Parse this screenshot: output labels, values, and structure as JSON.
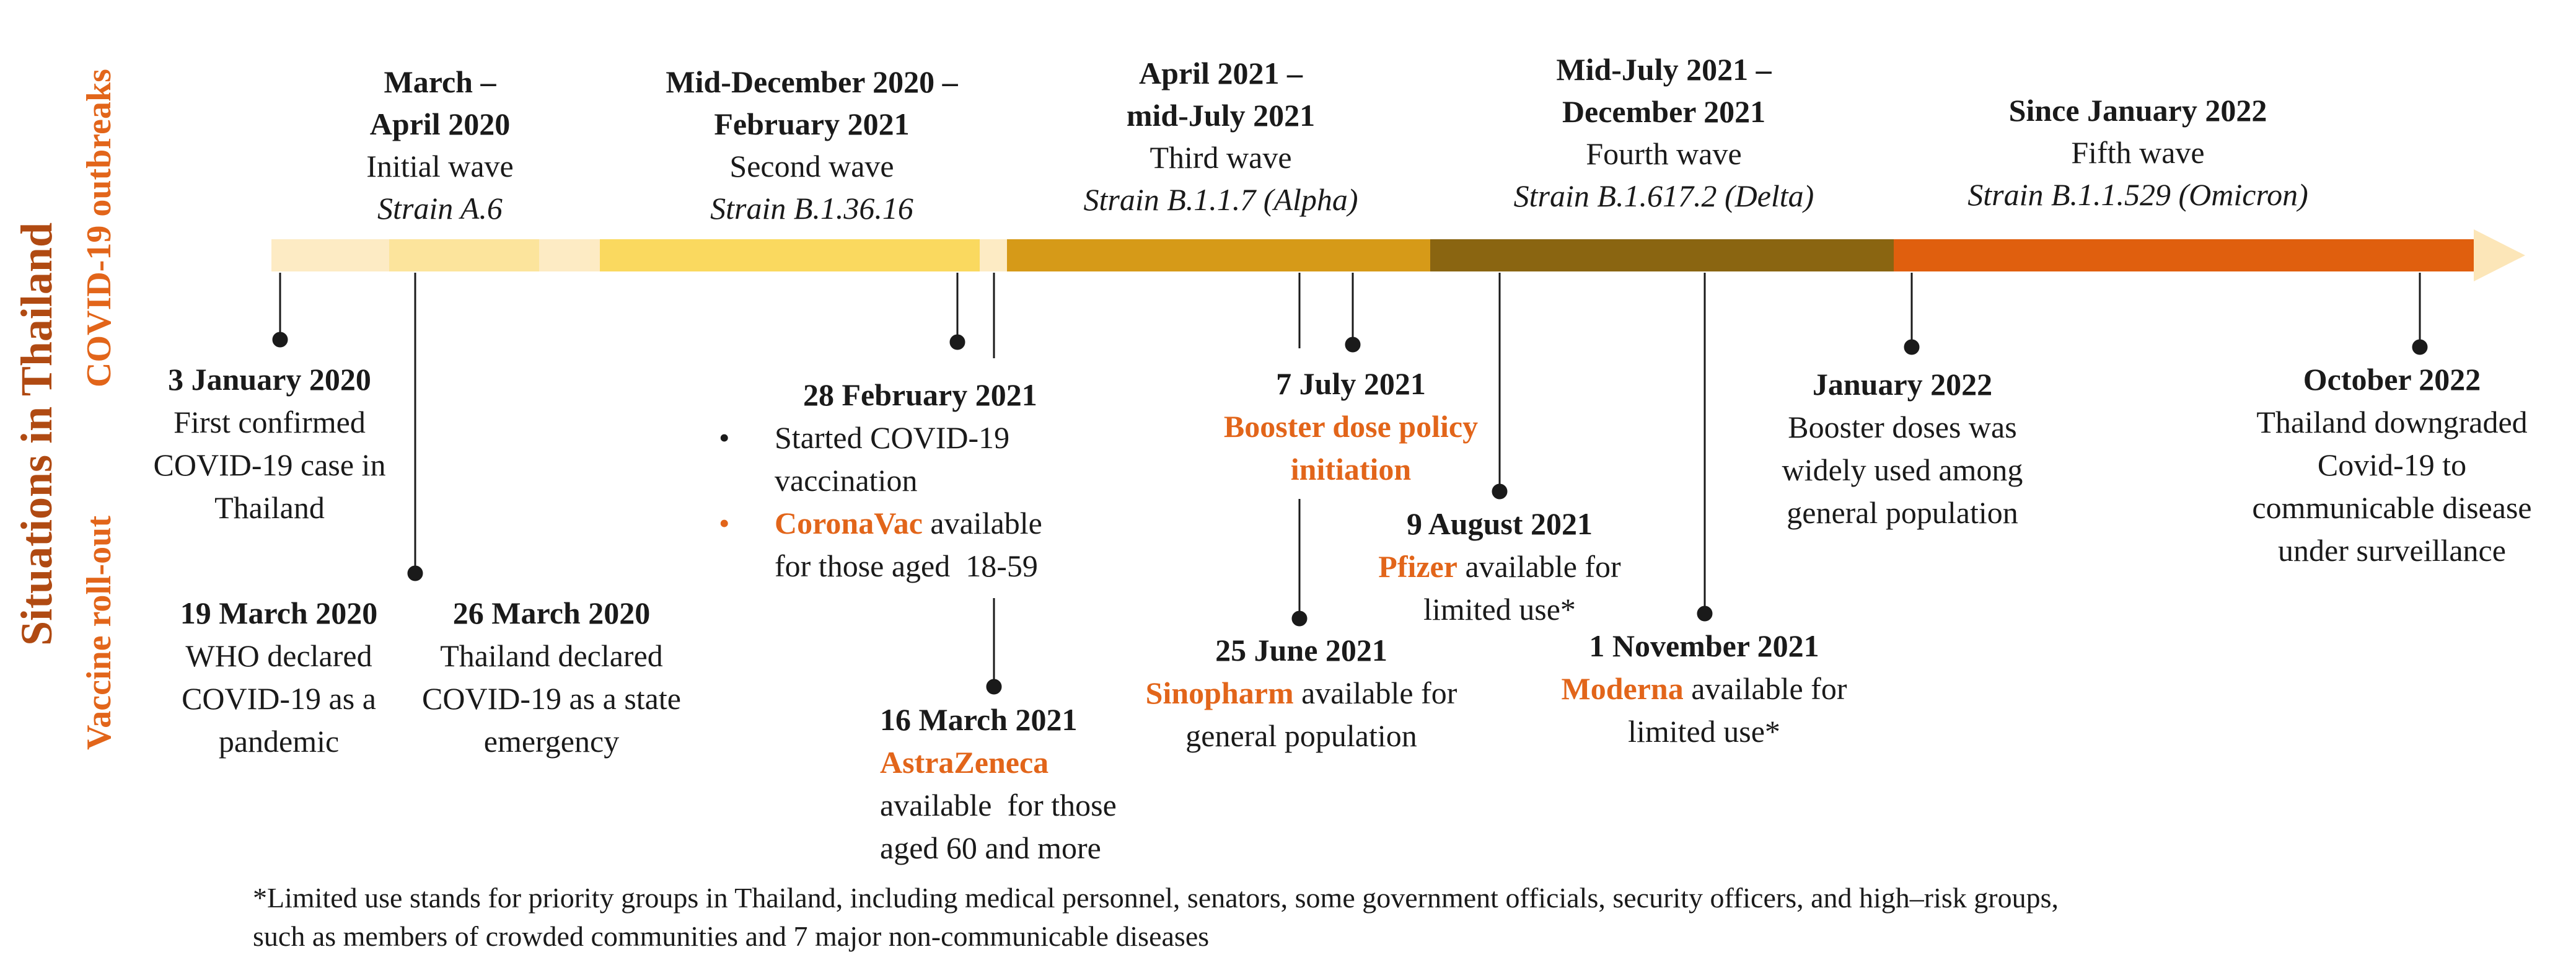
{
  "side_labels": {
    "main": "Situations in Thailand",
    "outbreaks": "COVID-19 outbreaks",
    "vaccine": "Vaccine roll-out"
  },
  "colors": {
    "accent_orange": "#E2651A",
    "dark_text": "#1a1a1a",
    "bar_pale": "#FDEBC4",
    "bar_light": "#FCE49C",
    "bar_yellow": "#FAD95F",
    "bar_gold": "#D69A18",
    "bar_brown": "#8A6511",
    "bar_orange": "#E05F0E",
    "arrow_head": "#FCE6B8"
  },
  "waves": [
    {
      "date_lines": [
        "March –",
        "April 2020"
      ],
      "name": "Initial wave",
      "strain": "Strain A.6"
    },
    {
      "date_lines": [
        "Mid-December 2020 –",
        "February 2021"
      ],
      "name": "Second wave",
      "strain": "Strain B.1.36.16"
    },
    {
      "date_lines": [
        "April 2021 –",
        "mid-July 2021"
      ],
      "name": "Third wave",
      "strain": "Strain B.1.1.7 (Alpha)"
    },
    {
      "date_lines": [
        "Mid-July 2021 –",
        "December 2021"
      ],
      "name": "Fourth wave",
      "strain": "Strain B.1.617.2 (Delta)"
    },
    {
      "date_lines": [
        "Since January 2022"
      ],
      "name": "Fifth wave",
      "strain": "Strain B.1.1.529 (Omicron)"
    }
  ],
  "events": {
    "jan2020": {
      "date": "3 January 2020",
      "lines": [
        "First confirmed",
        "COVID-19 case in",
        "Thailand"
      ]
    },
    "mar19": {
      "date": "19 March 2020",
      "lines": [
        "WHO declared",
        "COVID-19 as a",
        "pandemic"
      ]
    },
    "mar26": {
      "date": "26 March 2020",
      "lines": [
        "Thailand declared",
        "COVID-19 as a state",
        "emergency"
      ]
    },
    "feb28": {
      "date": "28 February 2021",
      "bullet_symbol": "•",
      "b1_lines": [
        "Started COVID-19",
        "vaccination"
      ],
      "b2_highlight": "CoronaVac",
      "b2_rest": " available",
      "b2_line2": "for those aged  18-59"
    },
    "mar16": {
      "date": "16 March 2021",
      "highlight": "AstraZeneca",
      "lines": [
        "available  for those",
        "aged 60 and more"
      ]
    },
    "jun25": {
      "date": "25 June 2021",
      "highlight": "Sinopharm",
      "rest": " available for",
      "line2": "general population"
    },
    "jul7": {
      "date": "7 July 2021",
      "highlight_lines": [
        "Booster dose policy",
        "initiation"
      ]
    },
    "aug9": {
      "date": "9 August 2021",
      "highlight": "Pfizer",
      "rest": " available for",
      "line2": "limited use*"
    },
    "nov1": {
      "date": "1 November 2021",
      "highlight": "Moderna",
      "rest": " available for",
      "line2": "limited use*"
    },
    "jan2022": {
      "date": "January 2022",
      "lines": [
        "Booster doses was",
        "widely used among",
        "general population"
      ]
    },
    "oct2022": {
      "date": "October 2022",
      "lines": [
        "Thailand downgraded",
        "Covid-19 to",
        "communicable disease",
        "under surveillance"
      ]
    }
  },
  "footnote": [
    "*Limited use stands for priority groups in Thailand, including medical personnel, senators, some government officials, security officers, and high–risk groups,",
    "such as members of crowded communities and 7 major non-communicable diseases"
  ]
}
